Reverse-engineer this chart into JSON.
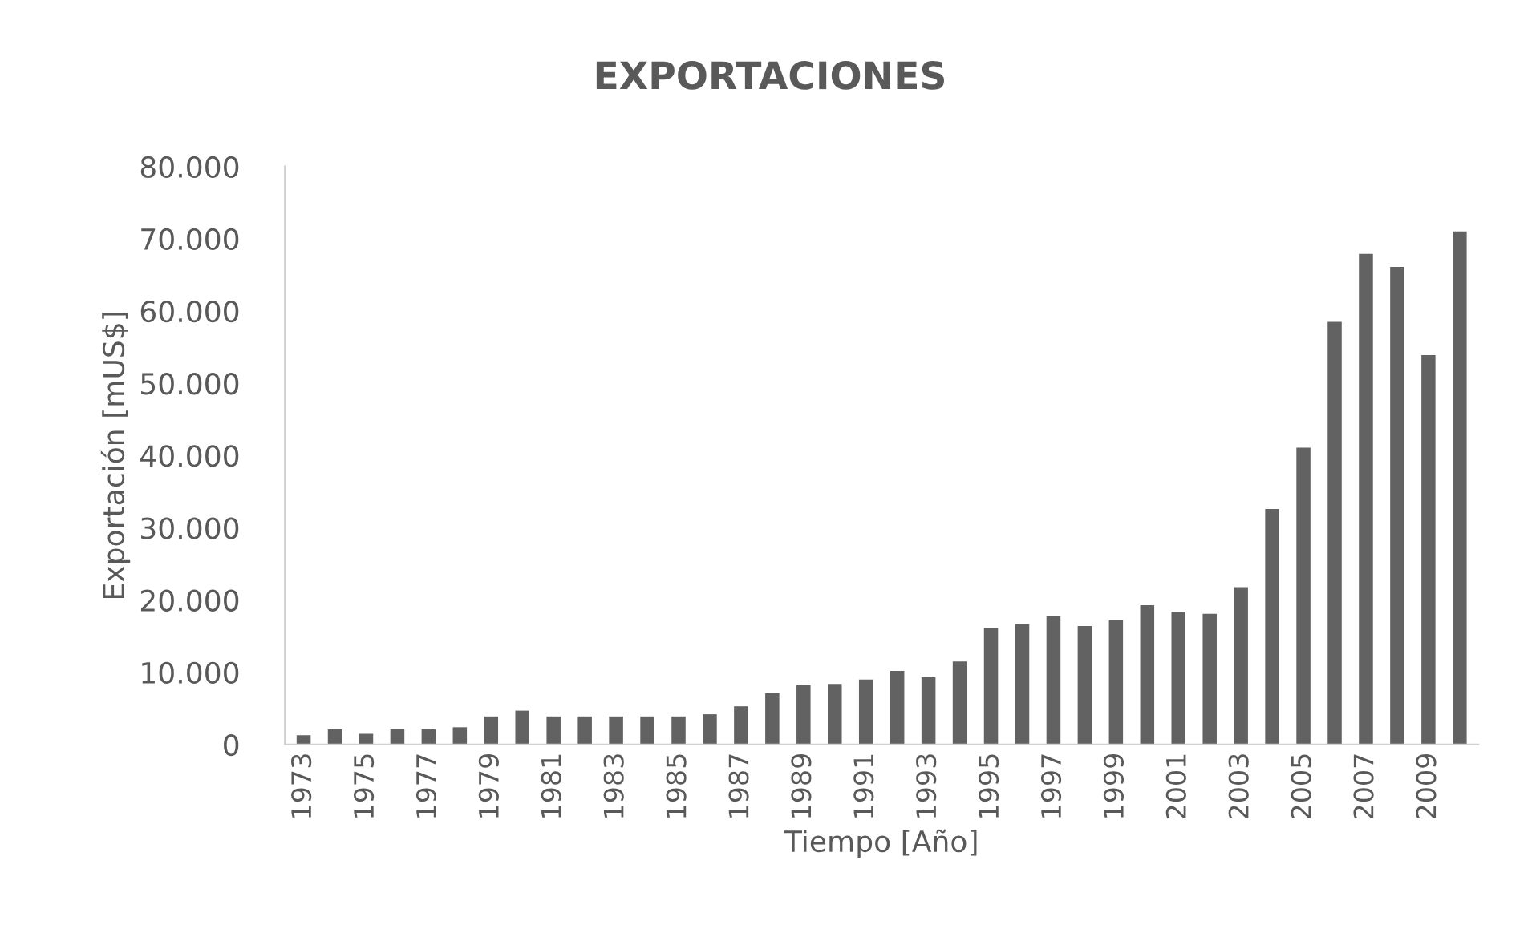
{
  "chart_data": {
    "type": "bar",
    "title": "EXPORTACIONES",
    "xlabel": "Tiempo [Año]",
    "ylabel": "Exportación [mUS$]",
    "categories": [
      "1973",
      null,
      "1975",
      null,
      "1977",
      null,
      "1979",
      null,
      "1981",
      null,
      "1983",
      null,
      "1985",
      null,
      "1987",
      null,
      "1989",
      null,
      "1991",
      null,
      "1993",
      null,
      "1995",
      null,
      "1997",
      null,
      "1999",
      null,
      "2001",
      null,
      "2003",
      null,
      "2005",
      null,
      "2007",
      null,
      "2009",
      null
    ],
    "values": [
      1300,
      2100,
      1500,
      2100,
      2100,
      2400,
      3900,
      4700,
      3900,
      3900,
      3900,
      3900,
      3900,
      4200,
      5300,
      7100,
      8200,
      8400,
      9000,
      10200,
      9300,
      11500,
      16100,
      16700,
      17800,
      16400,
      17300,
      19300,
      18400,
      18100,
      21800,
      32600,
      41100,
      58500,
      67900,
      66100,
      53900,
      71000
    ],
    "color": "#626262",
    "ylim": [
      0,
      80000
    ],
    "yticks": [
      0,
      {
        "value": 10000,
        "label": "10.000"
      },
      {
        "value": 20000,
        "label": "20.000"
      },
      {
        "value": 30000,
        "label": "30.000"
      },
      {
        "value": 40000,
        "label": "40.000"
      },
      {
        "value": 50000,
        "label": "50.000"
      },
      {
        "value": 60000,
        "label": "60.000"
      },
      {
        "value": 70000,
        "label": "70.000"
      },
      {
        "value": 80000,
        "label": "80.000"
      }
    ],
    "grid": false
  }
}
